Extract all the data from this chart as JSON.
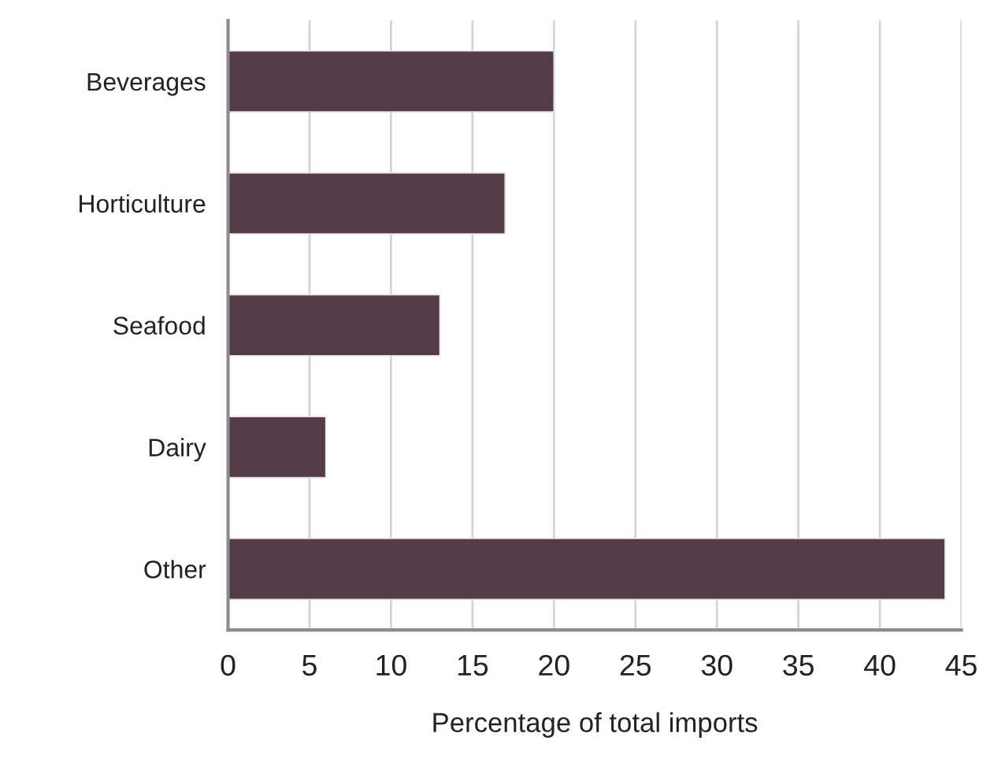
{
  "chart_data": {
    "type": "bar",
    "orientation": "horizontal",
    "xlabel": "Percentage of total imports",
    "categories": [
      "Beverages",
      "Horticulture",
      "Seafood",
      "Dairy",
      "Other"
    ],
    "values": [
      20,
      17,
      13,
      6,
      44
    ],
    "color": "#533b48",
    "xlim": [
      0,
      45
    ],
    "xticks": [
      0,
      5,
      10,
      15,
      20,
      25,
      30,
      35,
      40,
      45
    ],
    "grid": "x"
  }
}
